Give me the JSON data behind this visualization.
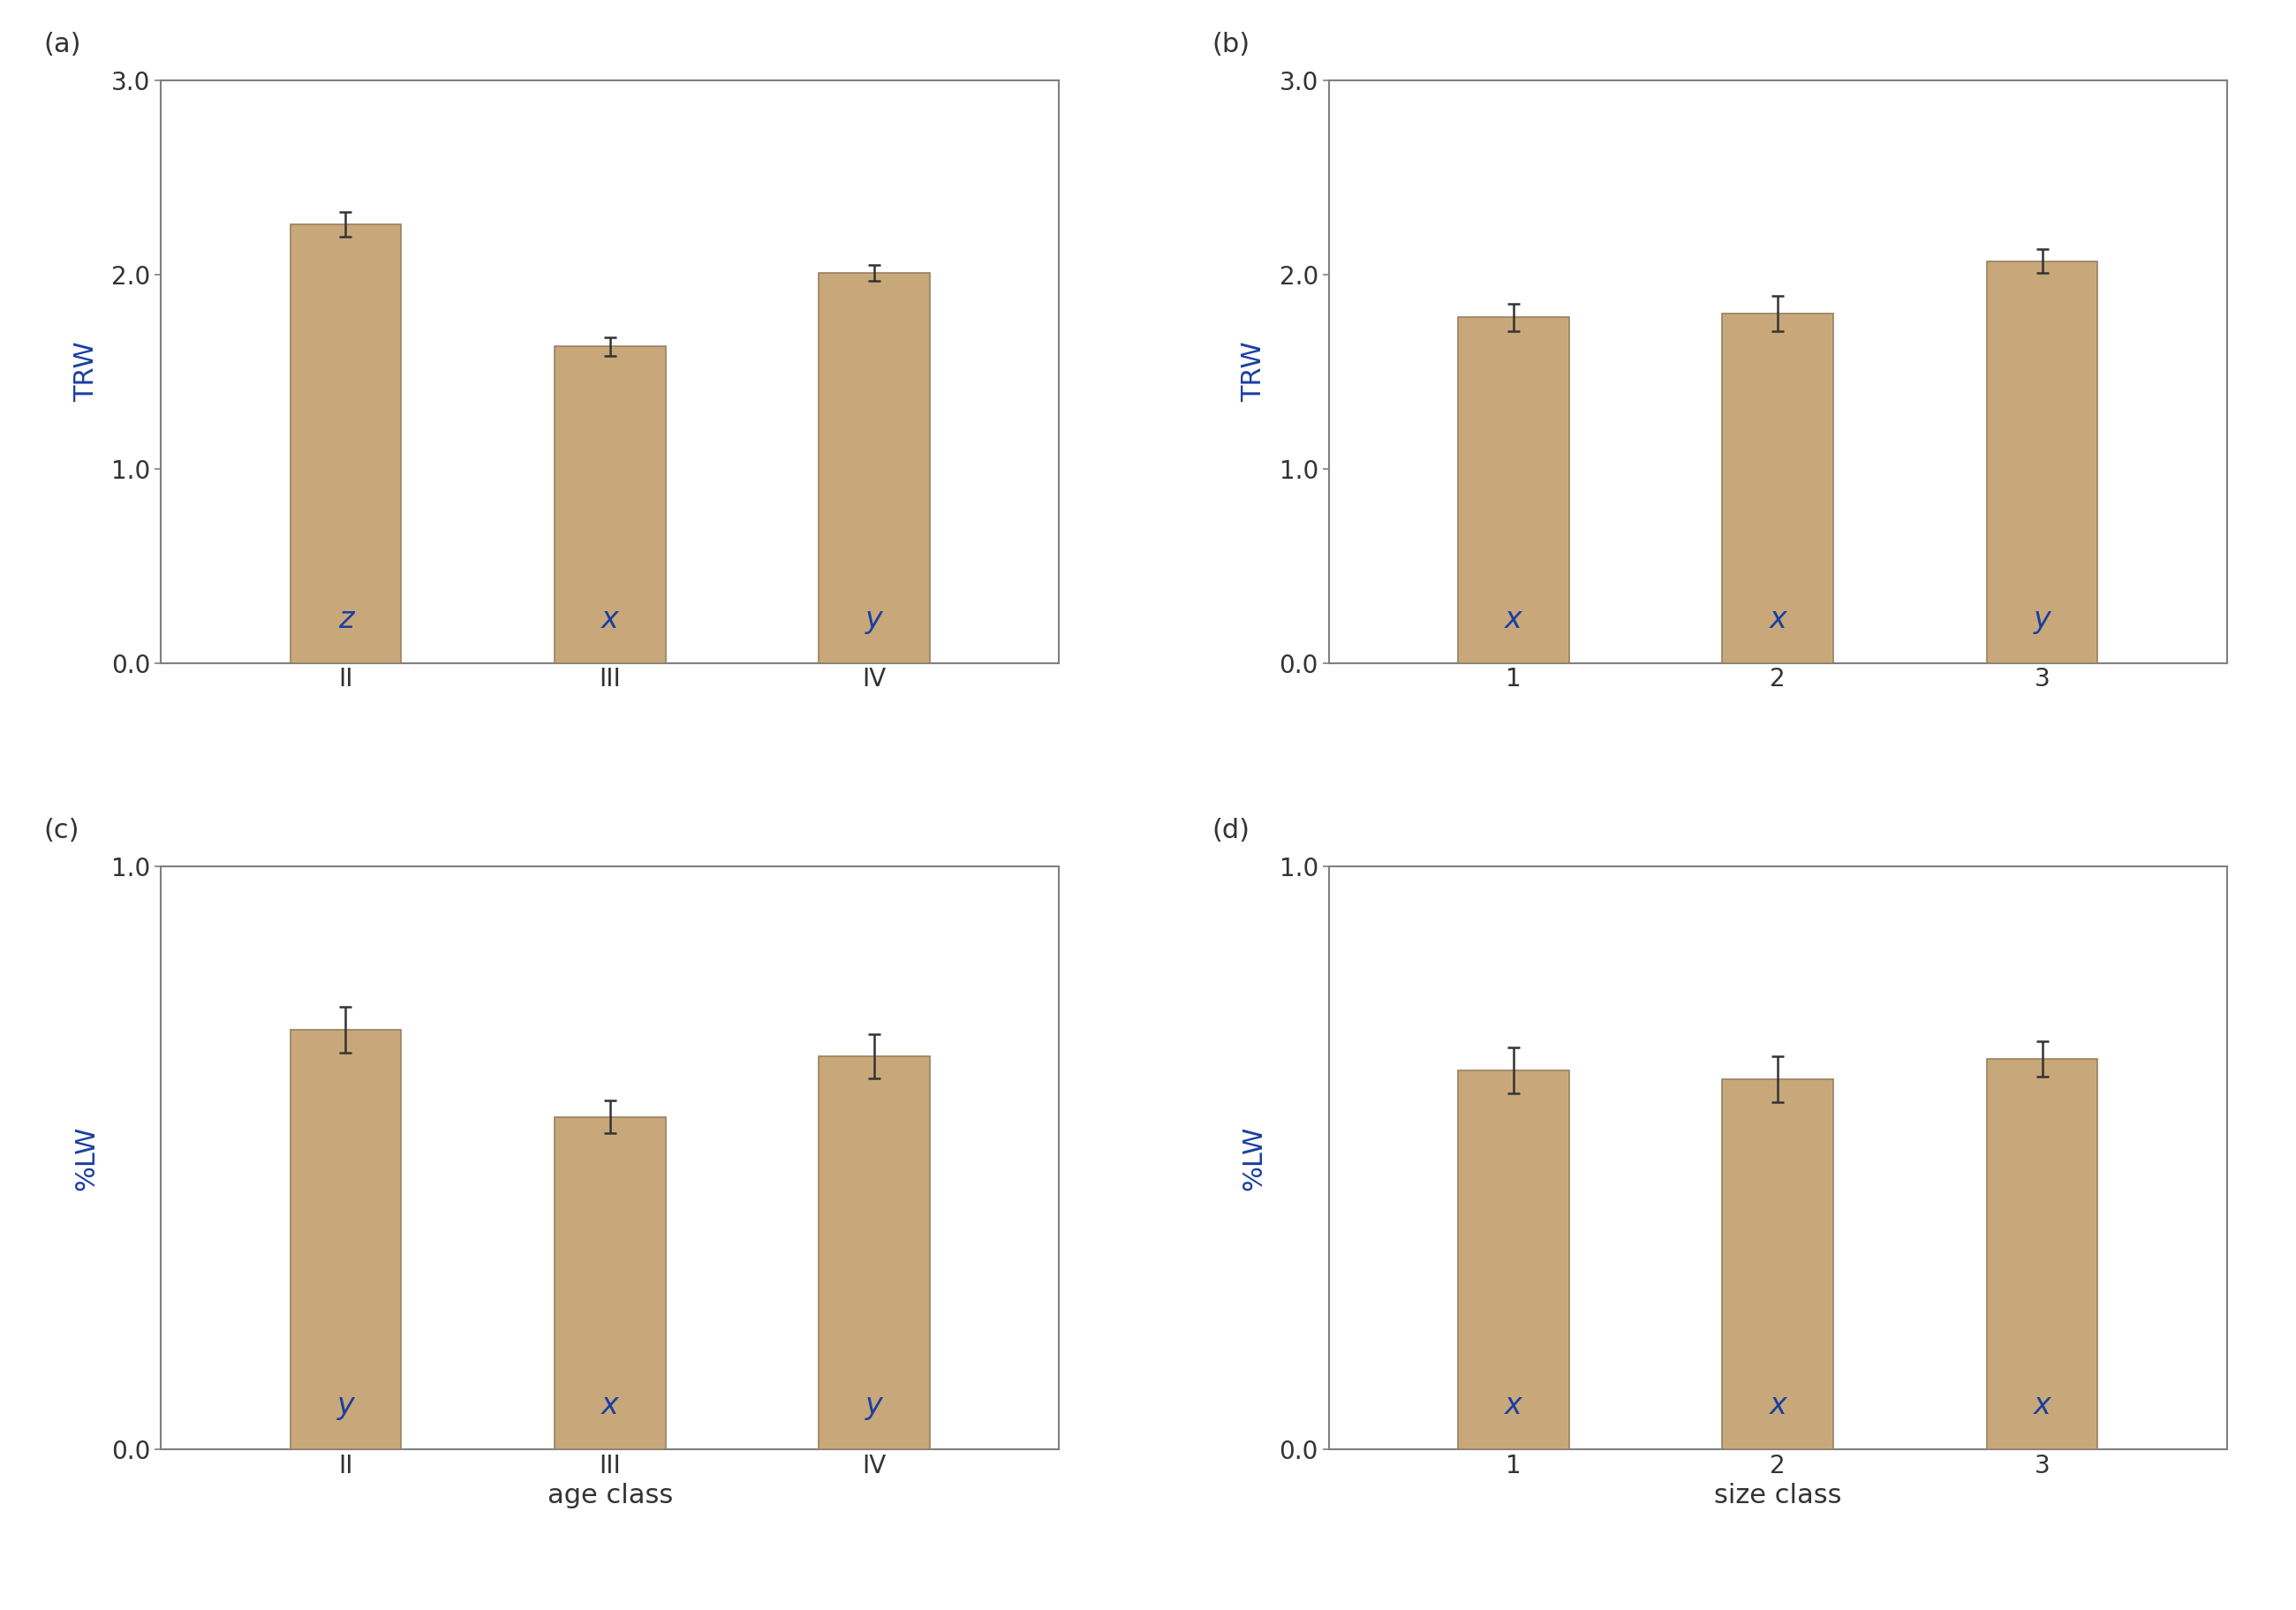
{
  "panels": [
    {
      "label": "(a)",
      "categories": [
        "II",
        "III",
        "IV"
      ],
      "values": [
        2.26,
        1.63,
        2.01
      ],
      "errors": [
        0.065,
        0.048,
        0.04
      ],
      "bar_labels": [
        "z",
        "x",
        "y"
      ],
      "ylabel": "TRW",
      "ylim": [
        0.0,
        3.0
      ],
      "yticks": [
        0.0,
        1.0,
        2.0,
        3.0
      ],
      "xlabel": ""
    },
    {
      "label": "(b)",
      "categories": [
        "1",
        "2",
        "3"
      ],
      "values": [
        1.78,
        1.8,
        2.07
      ],
      "errors": [
        0.07,
        0.09,
        0.06
      ],
      "bar_labels": [
        "x",
        "x",
        "y"
      ],
      "ylabel": "TRW",
      "ylim": [
        0.0,
        3.0
      ],
      "yticks": [
        0.0,
        1.0,
        2.0,
        3.0
      ],
      "xlabel": ""
    },
    {
      "label": "(c)",
      "categories": [
        "II",
        "III",
        "IV"
      ],
      "values": [
        0.72,
        0.57,
        0.675
      ],
      "errors": [
        0.04,
        0.028,
        0.038
      ],
      "bar_labels": [
        "y",
        "x",
        "y"
      ],
      "ylabel": "%LW",
      "ylim": [
        0.0,
        1.0
      ],
      "yticks": [
        0.0,
        1.0
      ],
      "xlabel": "age class"
    },
    {
      "label": "(d)",
      "categories": [
        "1",
        "2",
        "3"
      ],
      "values": [
        0.65,
        0.635,
        0.67
      ],
      "errors": [
        0.04,
        0.04,
        0.03
      ],
      "bar_labels": [
        "x",
        "x",
        "x"
      ],
      "ylabel": "%LW",
      "ylim": [
        0.0,
        1.0
      ],
      "yticks": [
        0.0,
        1.0
      ],
      "xlabel": "size class"
    }
  ],
  "bar_color": "#C8A87A",
  "bar_edge_color": "#9A8060",
  "error_color": "#333333",
  "bar_label_color": "#1a3fa0",
  "ylabel_color": "#1a3fa0",
  "xlabel_color": "#333333",
  "panel_label_color": "#333333",
  "background_color": "#ffffff",
  "bar_width": 0.42,
  "tick_label_fontsize": 20,
  "ylabel_fontsize": 22,
  "xlabel_fontsize": 22,
  "panel_label_fontsize": 22,
  "bar_label_fontsize": 24,
  "capsize": 5
}
